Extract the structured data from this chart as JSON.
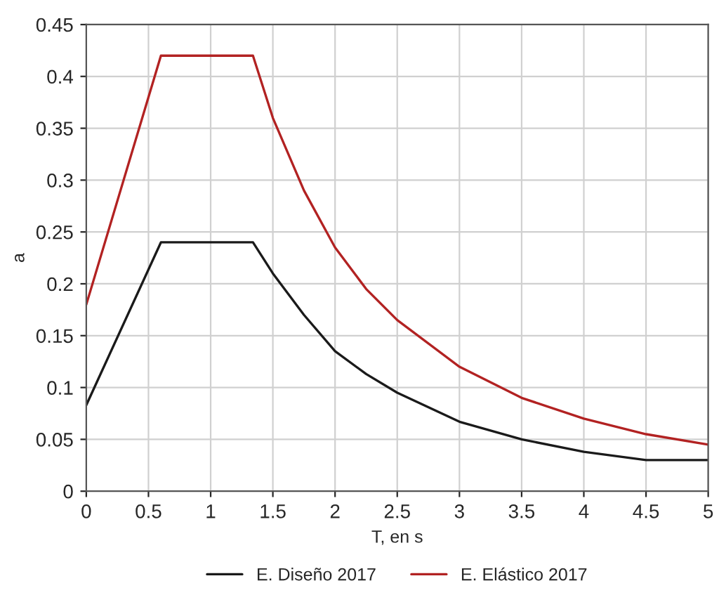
{
  "chart_data": {
    "type": "line",
    "xlabel": "T, en s",
    "ylabel": "a",
    "xlim": [
      0,
      5
    ],
    "xticks": [
      0,
      0.5,
      1,
      1.5,
      2,
      2.5,
      3,
      3.5,
      4,
      4.5,
      5
    ],
    "ylim": [
      0,
      0.45
    ],
    "yticks": [
      0,
      0.05,
      0.1,
      0.15,
      0.2,
      0.25,
      0.3,
      0.35,
      0.4,
      0.45
    ],
    "grid": true,
    "legend": "bottom",
    "marker": "none",
    "line_style": "solid",
    "series": [
      {
        "name": "E. Diseño 2017",
        "color": "#1a1a1a",
        "x": [
          0,
          0.6,
          1.34,
          1.5,
          1.75,
          2,
          2.25,
          2.5,
          3,
          3.5,
          4,
          4.5,
          5
        ],
        "values": [
          0.083,
          0.24,
          0.24,
          0.21,
          0.17,
          0.135,
          0.113,
          0.095,
          0.067,
          0.05,
          0.038,
          0.03,
          0.03
        ]
      },
      {
        "name": "E. Elástico 2017",
        "color": "#b22222",
        "x": [
          0,
          0.6,
          1.34,
          1.5,
          1.75,
          2,
          2.25,
          2.5,
          3,
          3.5,
          4,
          4.5,
          5
        ],
        "values": [
          0.18,
          0.42,
          0.42,
          0.36,
          0.29,
          0.235,
          0.195,
          0.165,
          0.12,
          0.09,
          0.07,
          0.055,
          0.045
        ]
      }
    ]
  }
}
